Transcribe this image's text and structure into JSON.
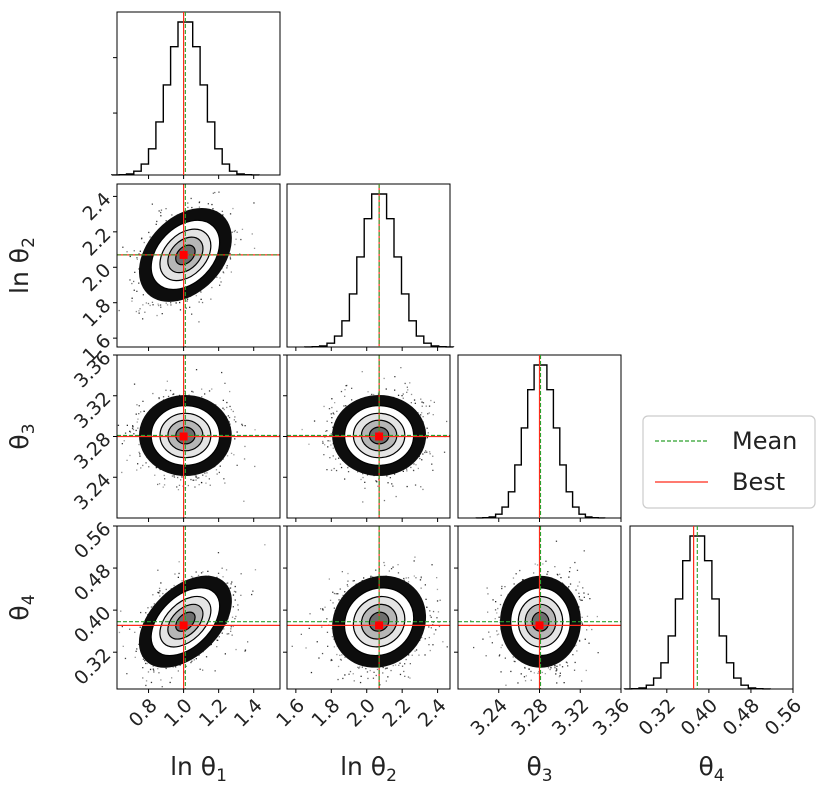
{
  "chart_data": {
    "type": "corner",
    "title": "",
    "parameters": [
      {
        "name": "ln θ1",
        "label_main": "ln θ",
        "label_sub": "1",
        "range": [
          0.62,
          1.55
        ],
        "ticks": [
          0.8,
          1.0,
          1.2,
          1.4
        ],
        "tick_labels": [
          "0.8",
          "1.0",
          "1.2",
          "1.4"
        ],
        "mean": 1.01,
        "best": 1.0,
        "sigma": 0.1
      },
      {
        "name": "ln θ2",
        "label_main": "ln θ",
        "label_sub": "2",
        "range": [
          1.55,
          2.47
        ],
        "ticks": [
          1.6,
          1.8,
          2.0,
          2.2,
          2.4
        ],
        "tick_labels": [
          "1.6",
          "1.8",
          "2.0",
          "2.2",
          "2.4"
        ],
        "mean": 2.07,
        "best": 2.07,
        "sigma": 0.1
      },
      {
        "name": "θ3",
        "label_main": "θ",
        "label_sub": "3",
        "range": [
          3.2,
          3.36
        ],
        "ticks": [
          3.24,
          3.28,
          3.32,
          3.36
        ],
        "tick_labels": [
          "3.24",
          "3.28",
          "3.32",
          "3.36"
        ],
        "mean": 3.281,
        "best": 3.28,
        "sigma": 0.015
      },
      {
        "name": "θ4",
        "label_main": "θ",
        "label_sub": "4",
        "range": [
          0.25,
          0.56
        ],
        "ticks": [
          0.32,
          0.4,
          0.48,
          0.56
        ],
        "tick_labels": [
          "0.32",
          "0.40",
          "0.48",
          "0.56"
        ],
        "mean": 0.378,
        "best": 0.371,
        "sigma": 0.033
      }
    ],
    "correlations": {
      "0-1": 0.35,
      "0-2": 0.0,
      "0-3": 0.45,
      "1-2": 0.0,
      "1-3": 0.1,
      "2-3": 0.0
    },
    "legend": {
      "placement": "right",
      "entries": [
        {
          "label": "Mean",
          "color": "#2ca02c",
          "style": "dashed"
        },
        {
          "label": "Best",
          "color": "#ff2a1a",
          "style": "solid"
        }
      ]
    }
  },
  "colors": {
    "mean": "#2ca02c",
    "best": "#ff2a1a",
    "point": "#ff0000",
    "hist": "#000000"
  }
}
